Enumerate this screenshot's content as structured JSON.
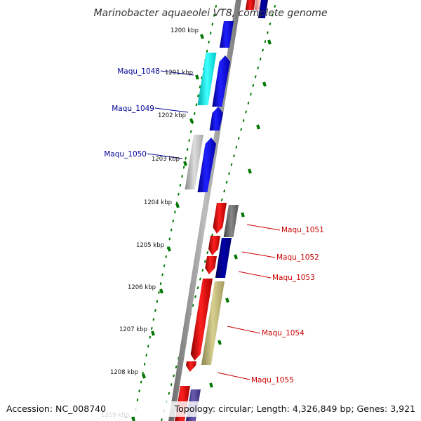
{
  "title": "Marinobacter aquaeolei VT8, complete genome",
  "footer": {
    "accession": "Accession: NC_008740",
    "topology": "Topology: circular; Length: 4,326,849 bp; Genes: 3,921"
  },
  "ticks": [
    {
      "label": "1200 kbp"
    },
    {
      "label": "1201 kbp"
    },
    {
      "label": "1202 kbp"
    },
    {
      "label": "1203 kbp"
    },
    {
      "label": "1204 kbp"
    },
    {
      "label": "1205 kbp"
    },
    {
      "label": "1206 kbp"
    },
    {
      "label": "1207 kbp"
    },
    {
      "label": "1208 kbp"
    },
    {
      "label": "1209 kbp"
    }
  ],
  "genes_left": [
    {
      "name": "Maqu_1048",
      "color": "#000099"
    },
    {
      "name": "Maqu_1049",
      "color": "#000099"
    },
    {
      "name": "Maqu_1050",
      "color": "#000099"
    }
  ],
  "genes_right": [
    {
      "name": "Maqu_1051",
      "color": "#cc0000"
    },
    {
      "name": "Maqu_1052",
      "color": "#cc0000"
    },
    {
      "name": "Maqu_1053",
      "color": "#cc0000"
    },
    {
      "name": "Maqu_1054",
      "color": "#cc0000"
    },
    {
      "name": "Maqu_1055",
      "color": "#cc0000"
    }
  ],
  "colors": {
    "forward_cds": "#0000ee",
    "reverse_cds": "#ee0000",
    "rna_cyan": "#00e5e5",
    "backbone": "#8c8c8c",
    "tick_green": "#006600",
    "dark_navy": "#000088",
    "olive": "#b8b070",
    "gray_feature": "#bbbbbb",
    "dark_gray_feature": "#666666",
    "purple_feature": "#4b3f8c"
  }
}
